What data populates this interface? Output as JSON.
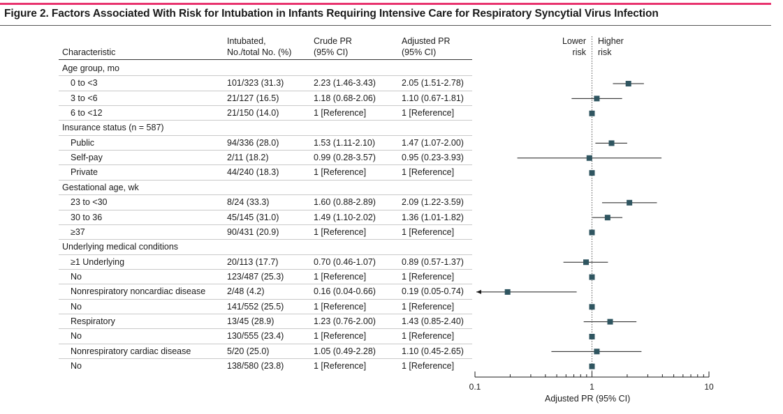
{
  "figure": {
    "title": "Figure 2. Factors Associated With Risk for Intubation in Infants Requiring Intensive Care for Respiratory Syncytial Virus Infection"
  },
  "table": {
    "headers": {
      "characteristic": "Characteristic",
      "intubated_line1": "Intubated,",
      "intubated_line2": "No./total No. (%)",
      "crude_line1": "Crude PR",
      "crude_line2": "(95% CI)",
      "adjusted_line1": "Adjusted PR",
      "adjusted_line2": "(95% CI)"
    },
    "rows": [
      {
        "label": "Age group, mo",
        "group": true
      },
      {
        "label": "0 to <3",
        "intubated": "101/323 (31.3)",
        "crude": "2.23 (1.46-3.43)",
        "adjusted": "2.05 (1.51-2.78)"
      },
      {
        "label": "3 to <6",
        "intubated": "21/127 (16.5)",
        "crude": "1.18 (0.68-2.06)",
        "adjusted": "1.10 (0.67-1.81)"
      },
      {
        "label": "6 to <12",
        "intubated": "21/150 (14.0)",
        "crude": "1 [Reference]",
        "adjusted": "1 [Reference]"
      },
      {
        "label": "Insurance status (n = 587)",
        "group": true
      },
      {
        "label": "Public",
        "intubated": "94/336 (28.0)",
        "crude": "1.53 (1.11-2.10)",
        "adjusted": "1.47 (1.07-2.00)"
      },
      {
        "label": "Self-pay",
        "intubated": "2/11 (18.2)",
        "crude": "0.99 (0.28-3.57)",
        "adjusted": "0.95 (0.23-3.93)"
      },
      {
        "label": "Private",
        "intubated": "44/240 (18.3)",
        "crude": "1 [Reference]",
        "adjusted": "1 [Reference]"
      },
      {
        "label": "Gestational age, wk",
        "group": true
      },
      {
        "label": "23 to <30",
        "intubated": "8/24 (33.3)",
        "crude": "1.60 (0.88-2.89)",
        "adjusted": "2.09 (1.22-3.59)"
      },
      {
        "label": "30 to 36",
        "intubated": "45/145 (31.0)",
        "crude": "1.49 (1.10-2.02)",
        "adjusted": "1.36 (1.01-1.82)"
      },
      {
        "label": "≥37",
        "intubated": "90/431 (20.9)",
        "crude": "1 [Reference]",
        "adjusted": "1 [Reference]"
      },
      {
        "label": "Underlying medical conditions",
        "group": true
      },
      {
        "label": "≥1 Underlying",
        "intubated": "20/113 (17.7)",
        "crude": "0.70 (0.46-1.07)",
        "adjusted": "0.89 (0.57-1.37)"
      },
      {
        "label": "No",
        "intubated": "123/487 (25.3)",
        "crude": "1 [Reference]",
        "adjusted": "1 [Reference]"
      },
      {
        "label": "Nonrespiratory noncardiac disease",
        "intubated": "2/48 (4.2)",
        "crude": "0.16 (0.04-0.66)",
        "adjusted": "0.19 (0.05-0.74)"
      },
      {
        "label": "No",
        "intubated": "141/552 (25.5)",
        "crude": "1 [Reference]",
        "adjusted": "1 [Reference]"
      },
      {
        "label": "Respiratory",
        "intubated": "13/45 (28.9)",
        "crude": "1.23 (0.76-2.00)",
        "adjusted": "1.43 (0.85-2.40)"
      },
      {
        "label": "No",
        "intubated": "130/555 (23.4)",
        "crude": "1 [Reference]",
        "adjusted": "1 [Reference]"
      },
      {
        "label": "Nonrespiratory cardiac disease",
        "intubated": "5/20 (25.0)",
        "crude": "1.05 (0.49-2.28)",
        "adjusted": "1.10 (0.45-2.65)"
      },
      {
        "label": "No",
        "intubated": "138/580 (23.8)",
        "crude": "1 [Reference]",
        "adjusted": "1 [Reference]"
      }
    ]
  },
  "chart_data": {
    "type": "forest",
    "title": "Adjusted PR (95% CI)",
    "xlabel": "Adjusted PR (95% CI)",
    "xscale": "log",
    "xlim": [
      0.1,
      10
    ],
    "xticks": [
      0.1,
      1,
      10
    ],
    "xtick_labels": [
      "0.1",
      "1",
      "10"
    ],
    "reference_line": 1,
    "lower_label_line1": "Lower",
    "lower_label_line2": "risk",
    "higher_label_line1": "Higher",
    "higher_label_line2": "risk",
    "points": [
      {
        "row": 1,
        "label": "0 to <3",
        "estimate": 2.05,
        "lower": 1.51,
        "upper": 2.78
      },
      {
        "row": 2,
        "label": "3 to <6",
        "estimate": 1.1,
        "lower": 0.67,
        "upper": 1.81
      },
      {
        "row": 3,
        "label": "6 to <12",
        "estimate": 1,
        "lower": null,
        "upper": null
      },
      {
        "row": 5,
        "label": "Public",
        "estimate": 1.47,
        "lower": 1.07,
        "upper": 2.0
      },
      {
        "row": 6,
        "label": "Self-pay",
        "estimate": 0.95,
        "lower": 0.23,
        "upper": 3.93
      },
      {
        "row": 7,
        "label": "Private",
        "estimate": 1,
        "lower": null,
        "upper": null
      },
      {
        "row": 9,
        "label": "23 to <30",
        "estimate": 2.09,
        "lower": 1.22,
        "upper": 3.59
      },
      {
        "row": 10,
        "label": "30 to 36",
        "estimate": 1.36,
        "lower": 1.01,
        "upper": 1.82
      },
      {
        "row": 11,
        "label": "≥37",
        "estimate": 1,
        "lower": null,
        "upper": null
      },
      {
        "row": 13,
        "label": "≥1 Underlying",
        "estimate": 0.89,
        "lower": 0.57,
        "upper": 1.37
      },
      {
        "row": 14,
        "label": "No",
        "estimate": 1,
        "lower": null,
        "upper": null
      },
      {
        "row": 15,
        "label": "Nonrespiratory noncardiac disease",
        "estimate": 0.19,
        "lower": 0.05,
        "upper": 0.74,
        "lower_truncated": true
      },
      {
        "row": 16,
        "label": "No",
        "estimate": 1,
        "lower": null,
        "upper": null
      },
      {
        "row": 17,
        "label": "Respiratory",
        "estimate": 1.43,
        "lower": 0.85,
        "upper": 2.4
      },
      {
        "row": 18,
        "label": "No",
        "estimate": 1,
        "lower": null,
        "upper": null
      },
      {
        "row": 19,
        "label": "Nonrespiratory cardiac disease",
        "estimate": 1.1,
        "lower": 0.45,
        "upper": 2.65
      },
      {
        "row": 20,
        "label": "No",
        "estimate": 1,
        "lower": null,
        "upper": null
      }
    ],
    "colors": {
      "marker": "#2f5560",
      "line": "#1a1a1a",
      "reference": "#555555"
    }
  }
}
